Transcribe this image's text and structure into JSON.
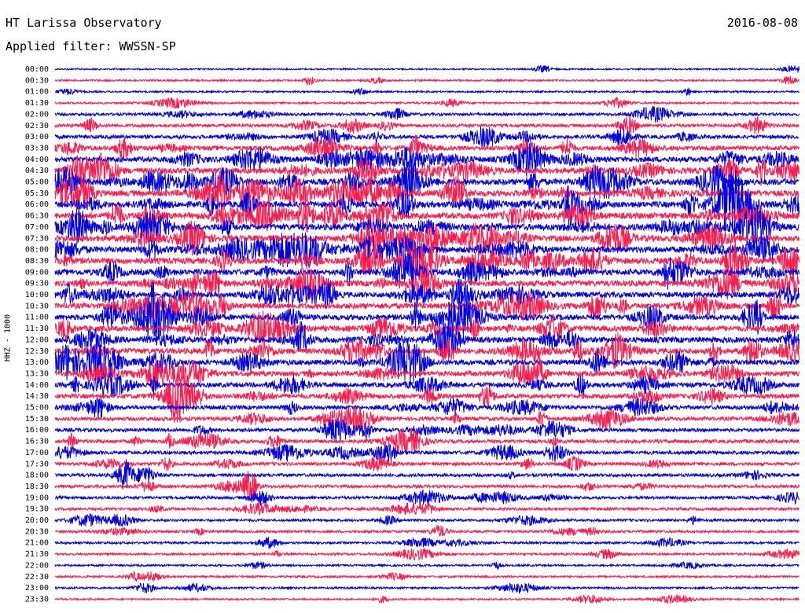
{
  "header": {
    "station": "HT Larissa Observatory",
    "date": "2016-08-08",
    "filter": "Applied filter: WWSSN-SP"
  },
  "chart_data": {
    "type": "line",
    "title": "HT Larissa Observatory",
    "ylabel": "HHZ - 1000",
    "row_labels": [
      "00:00",
      "00:30",
      "01:00",
      "01:30",
      "02:00",
      "02:30",
      "03:00",
      "03:30",
      "04:00",
      "04:30",
      "05:00",
      "05:30",
      "06:00",
      "06:30",
      "07:00",
      "07:30",
      "08:00",
      "08:30",
      "09:00",
      "09:30",
      "10:00",
      "10:30",
      "11:00",
      "11:30",
      "12:00",
      "12:30",
      "13:00",
      "13:30",
      "14:00",
      "14:30",
      "15:00",
      "15:30",
      "16:00",
      "16:30",
      "17:00",
      "17:30",
      "18:00",
      "18:30",
      "19:00",
      "19:30",
      "20:00",
      "20:30",
      "21:00",
      "21:30",
      "22:00",
      "22:30",
      "23:00",
      "23:30"
    ],
    "row_activity": [
      0.1,
      0.15,
      0.15,
      0.2,
      0.35,
      0.45,
      0.55,
      0.7,
      0.85,
      0.95,
      1.0,
      1.0,
      1.0,
      1.0,
      1.0,
      1.0,
      1.0,
      1.0,
      0.95,
      0.95,
      0.9,
      0.9,
      0.9,
      0.9,
      0.9,
      0.9,
      0.85,
      0.8,
      0.75,
      0.7,
      0.6,
      0.55,
      0.5,
      0.5,
      0.5,
      0.45,
      0.45,
      0.4,
      0.4,
      0.35,
      0.3,
      0.3,
      0.25,
      0.25,
      0.2,
      0.2,
      0.2,
      0.15
    ],
    "colors": [
      "#0000e0",
      "#ff1a4b"
    ],
    "grid": false
  }
}
